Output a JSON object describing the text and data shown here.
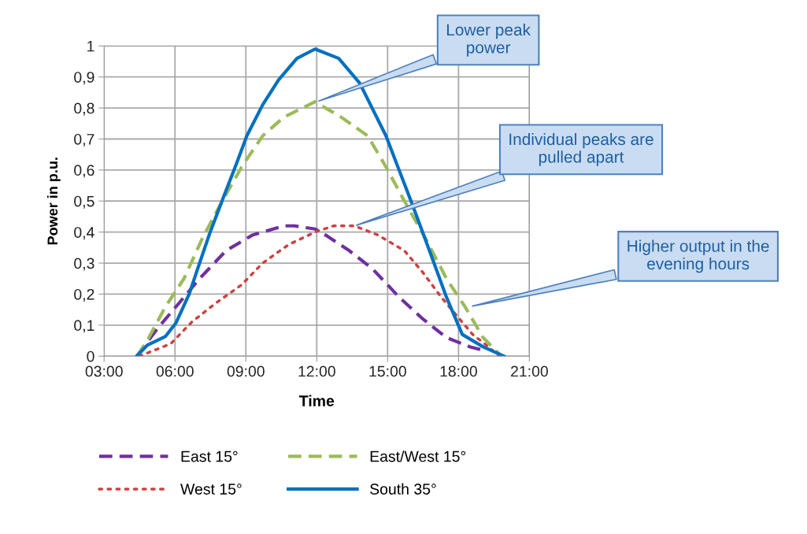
{
  "chart_data": {
    "type": "line",
    "xlabel": "Time",
    "ylabel": "Power in p.u.",
    "xlim": [
      3,
      21
    ],
    "xticks": [
      {
        "value": 3,
        "label": "03:00"
      },
      {
        "value": 6,
        "label": "06:00"
      },
      {
        "value": 9,
        "label": "09:00"
      },
      {
        "value": 12,
        "label": "12:00"
      },
      {
        "value": 15,
        "label": "15:00"
      },
      {
        "value": 18,
        "label": "18:00"
      },
      {
        "value": 21,
        "label": "21:00"
      }
    ],
    "ylim": [
      0,
      1
    ],
    "yticks": [
      0,
      {
        "value": 0.1,
        "label": "0,1"
      },
      {
        "value": 0.2,
        "label": "0,2"
      },
      {
        "value": 0.3,
        "label": "0,3"
      },
      {
        "value": 0.4,
        "label": "0,4"
      },
      {
        "value": 0.5,
        "label": "0,5"
      },
      {
        "value": 0.6,
        "label": "0,6"
      },
      {
        "value": 0.7,
        "label": "0,7"
      },
      {
        "value": 0.8,
        "label": "0,8"
      },
      {
        "value": 0.9,
        "label": "0,9"
      },
      1
    ],
    "grid": true,
    "legend": "bottom",
    "marker": "none",
    "series": [
      {
        "name": "East 15°",
        "color": "#7030a0",
        "line_style": "dashed",
        "x": [
          4.38,
          5.27,
          6.16,
          7.04,
          8.16,
          9.27,
          10.6,
          11.04,
          11.93,
          12.38,
          13.38,
          14.38,
          15.49,
          16.49,
          17.49,
          18.49,
          19.0
        ],
        "values": [
          0,
          0.09,
          0.17,
          0.25,
          0.34,
          0.39,
          0.42,
          0.42,
          0.41,
          0.39,
          0.34,
          0.28,
          0.19,
          0.12,
          0.06,
          0.03,
          0.02
        ]
      },
      {
        "name": "West 15°",
        "color": "#d04040",
        "line_style": "dotted",
        "x": [
          4.49,
          5.16,
          5.82,
          6.71,
          7.71,
          8.82,
          9.71,
          10.82,
          11.93,
          12.71,
          13.6,
          14.6,
          15.71,
          16.49,
          17.27,
          17.93,
          18.6,
          19.27,
          19.71
        ],
        "values": [
          0,
          0.02,
          0.04,
          0.11,
          0.17,
          0.23,
          0.3,
          0.36,
          0.4,
          0.42,
          0.42,
          0.39,
          0.34,
          0.27,
          0.19,
          0.13,
          0.07,
          0.03,
          0
        ]
      },
      {
        "name": "East/West 15°",
        "color": "#9bbb59",
        "line_style": "dashed",
        "x": [
          4.4,
          4.82,
          5.6,
          6.38,
          7.16,
          7.93,
          8.82,
          9.71,
          10.6,
          11.93,
          13.04,
          14.16,
          14.93,
          15.71,
          16.6,
          17.49,
          18.27,
          19.04,
          19.82
        ],
        "values": [
          0,
          0.05,
          0.16,
          0.25,
          0.38,
          0.49,
          0.61,
          0.71,
          0.77,
          0.82,
          0.77,
          0.71,
          0.61,
          0.5,
          0.38,
          0.25,
          0.16,
          0.06,
          0
        ]
      },
      {
        "name": "South 35°",
        "color": "#0070c0",
        "line_style": "solid",
        "x": [
          4.38,
          4.82,
          5.6,
          6.04,
          6.6,
          7.04,
          7.49,
          8.04,
          8.6,
          9.04,
          9.71,
          10.38,
          11.16,
          11.93,
          12.93,
          13.82,
          14.93,
          16.04,
          16.82,
          17.49,
          18.16,
          19.04,
          19.93
        ],
        "values": [
          0,
          0.035,
          0.064,
          0.107,
          0.2,
          0.3,
          0.4,
          0.51,
          0.62,
          0.71,
          0.81,
          0.89,
          0.96,
          0.99,
          0.96,
          0.88,
          0.71,
          0.49,
          0.33,
          0.19,
          0.07,
          0.03,
          0
        ]
      }
    ],
    "annotations": [
      {
        "text": "Lower peak\npower",
        "x": 12,
        "y": 0.82
      },
      {
        "text": "Individual peaks are\npulled apart",
        "x": 13.6,
        "y": 0.42
      },
      {
        "text": "Higher output in the\nevening hours",
        "x": 18.5,
        "y": 0.16
      }
    ]
  }
}
